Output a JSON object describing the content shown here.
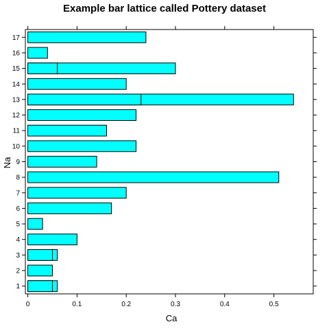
{
  "chart_data": {
    "type": "bar",
    "orientation": "horizontal",
    "title": "Example bar lattice called Pottery dataset",
    "xlabel": "Ca",
    "ylabel": "Na",
    "xlim": [
      -0.005,
      0.58
    ],
    "x_ticks": [
      "0",
      "0.1",
      "0.2",
      "0.3",
      "0.4",
      "0.5"
    ],
    "categories": [
      "1",
      "2",
      "3",
      "4",
      "5",
      "6",
      "7",
      "8",
      "9",
      "10",
      "11",
      "12",
      "13",
      "14",
      "15",
      "16",
      "17"
    ],
    "bars": [
      {
        "category": "1",
        "values": [
          0.06,
          0.05
        ]
      },
      {
        "category": "2",
        "values": [
          0.05
        ]
      },
      {
        "category": "3",
        "values": [
          0.06,
          0.05
        ]
      },
      {
        "category": "4",
        "values": [
          0.1
        ]
      },
      {
        "category": "5",
        "values": [
          0.03
        ]
      },
      {
        "category": "6",
        "values": [
          0.17
        ]
      },
      {
        "category": "7",
        "values": [
          0.2
        ]
      },
      {
        "category": "8",
        "values": [
          0.51
        ]
      },
      {
        "category": "9",
        "values": [
          0.14
        ]
      },
      {
        "category": "10",
        "values": [
          0.22
        ]
      },
      {
        "category": "11",
        "values": [
          0.16
        ]
      },
      {
        "category": "12",
        "values": [
          0.22
        ]
      },
      {
        "category": "13",
        "values": [
          0.54,
          0.23
        ]
      },
      {
        "category": "14",
        "values": [
          0.2
        ]
      },
      {
        "category": "15",
        "values": [
          0.3,
          0.06
        ]
      },
      {
        "category": "16",
        "values": [
          0.04
        ]
      },
      {
        "category": "17",
        "values": [
          0.24
        ]
      }
    ],
    "bar_color": "#00ffff",
    "border_color": "#000000",
    "grid": false
  }
}
